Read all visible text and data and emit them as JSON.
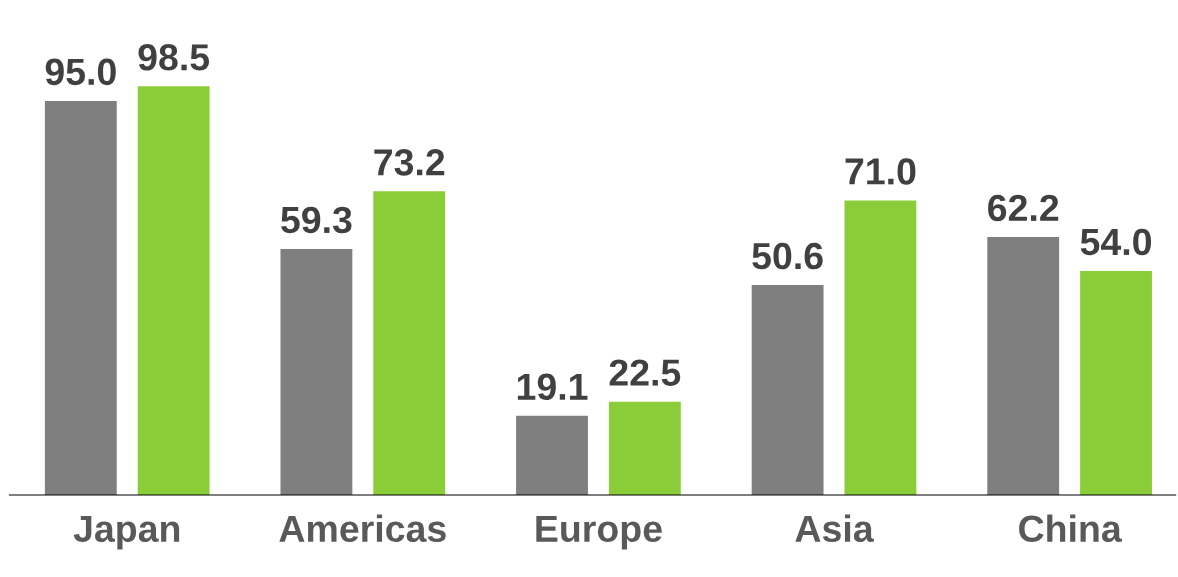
{
  "chart_data": {
    "type": "bar",
    "categories": [
      "Japan",
      "Americas",
      "Europe",
      "Asia",
      "China"
    ],
    "series": [
      {
        "color": "#7f7f7f",
        "values": [
          95.0,
          59.3,
          19.1,
          50.6,
          62.2
        ],
        "value_labels": [
          "95.0",
          "59.3",
          "19.1",
          "50.6",
          "62.2"
        ]
      },
      {
        "color": "#8bcd38",
        "values": [
          98.5,
          73.2,
          22.5,
          71.0,
          54.0
        ],
        "value_labels": [
          "98.5",
          "73.2",
          "22.5",
          "71.0",
          "54.0"
        ]
      }
    ],
    "tick_labels": "x"
  }
}
